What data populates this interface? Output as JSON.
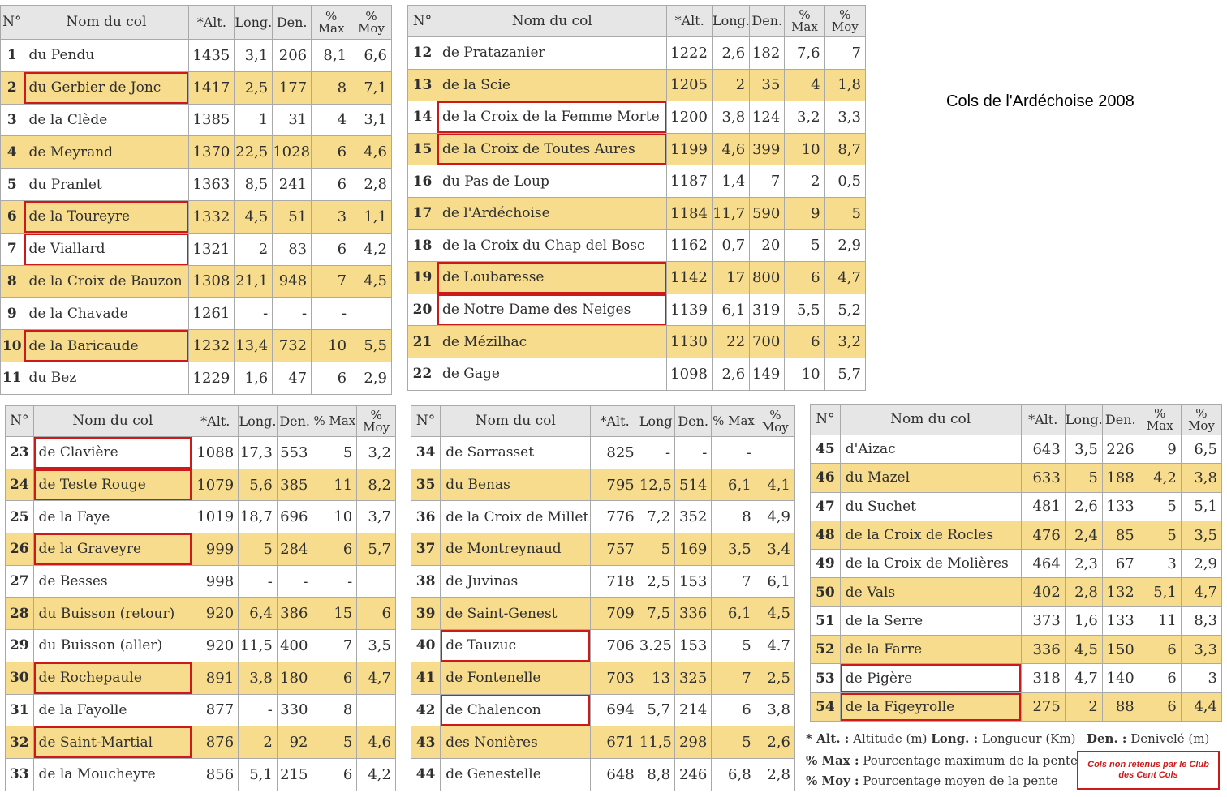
{
  "title": "Cols de l'Ardéchoise 2008",
  "headers": {
    "num": "N°",
    "name": "Nom du col",
    "alt": "*Alt.",
    "len": "Long.",
    "den": "Den.",
    "max": "% Max",
    "moy": "% Moy"
  },
  "tables": [
    {
      "rows": [
        {
          "n": "1",
          "name": "du Pendu",
          "alt": "1435",
          "len": "3,1",
          "den": "206",
          "max": "8,1",
          "moy": "6,6",
          "marked": false
        },
        {
          "n": "2",
          "name": "du Gerbier de Jonc",
          "alt": "1417",
          "len": "2,5",
          "den": "177",
          "max": "8",
          "moy": "7,1",
          "marked": true
        },
        {
          "n": "3",
          "name": "de la Clède",
          "alt": "1385",
          "len": "1",
          "den": "31",
          "max": "4",
          "moy": "3,1",
          "marked": false
        },
        {
          "n": "4",
          "name": "de Meyrand",
          "alt": "1370",
          "len": "22,5",
          "den": "1028",
          "max": "6",
          "moy": "4,6",
          "marked": false
        },
        {
          "n": "5",
          "name": "du Pranlet",
          "alt": "1363",
          "len": "8,5",
          "den": "241",
          "max": "6",
          "moy": "2,8",
          "marked": false
        },
        {
          "n": "6",
          "name": "de la Toureyre",
          "alt": "1332",
          "len": "4,5",
          "den": "51",
          "max": "3",
          "moy": "1,1",
          "marked": true
        },
        {
          "n": "7",
          "name": "de Viallard",
          "alt": "1321",
          "len": "2",
          "den": "83",
          "max": "6",
          "moy": "4,2",
          "marked": true
        },
        {
          "n": "8",
          "name": "de la Croix de Bauzon",
          "alt": "1308",
          "len": "21,1",
          "den": "948",
          "max": "7",
          "moy": "4,5",
          "marked": false
        },
        {
          "n": "9",
          "name": "de la Chavade",
          "alt": "1261",
          "len": "-",
          "den": "-",
          "max": "-",
          "moy": "",
          "marked": false
        },
        {
          "n": "10",
          "name": "de la Baricaude",
          "alt": "1232",
          "len": "13,4",
          "den": "732",
          "max": "10",
          "moy": "5,5",
          "marked": true
        },
        {
          "n": "11",
          "name": "du Bez",
          "alt": "1229",
          "len": "1,6",
          "den": "47",
          "max": "6",
          "moy": "2,9",
          "marked": false
        }
      ]
    },
    {
      "rows": [
        {
          "n": "12",
          "name": "de Pratazanier",
          "alt": "1222",
          "len": "2,6",
          "den": "182",
          "max": "7,6",
          "moy": "7",
          "marked": false
        },
        {
          "n": "13",
          "name": "de la Scie",
          "alt": "1205",
          "len": "2",
          "den": "35",
          "max": "4",
          "moy": "1,8",
          "marked": false
        },
        {
          "n": "14",
          "name": "de la Croix de la Femme Morte",
          "alt": "1200",
          "len": "3,8",
          "den": "124",
          "max": "3,2",
          "moy": "3,3",
          "marked": true
        },
        {
          "n": "15",
          "name": "de la Croix de Toutes Aures",
          "alt": "1199",
          "len": "4,6",
          "den": "399",
          "max": "10",
          "moy": "8,7",
          "marked": true
        },
        {
          "n": "16",
          "name": "du Pas de Loup",
          "alt": "1187",
          "len": "1,4",
          "den": "7",
          "max": "2",
          "moy": "0,5",
          "marked": false
        },
        {
          "n": "17",
          "name": "de l'Ardéchoise",
          "alt": "1184",
          "len": "11,7",
          "den": "590",
          "max": "9",
          "moy": "5",
          "marked": false
        },
        {
          "n": "18",
          "name": "de la Croix du Chap del Bosc",
          "alt": "1162",
          "len": "0,7",
          "den": "20",
          "max": "5",
          "moy": "2,9",
          "marked": false
        },
        {
          "n": "19",
          "name": "de Loubaresse",
          "alt": "1142",
          "len": "17",
          "den": "800",
          "max": "6",
          "moy": "4,7",
          "marked": true
        },
        {
          "n": "20",
          "name": "de Notre Dame des Neiges",
          "alt": "1139",
          "len": "6,1",
          "den": "319",
          "max": "5,5",
          "moy": "5,2",
          "marked": true
        },
        {
          "n": "21",
          "name": "de Mézilhac",
          "alt": "1130",
          "len": "22",
          "den": "700",
          "max": "6",
          "moy": "3,2",
          "marked": false
        },
        {
          "n": "22",
          "name": "de Gage",
          "alt": "1098",
          "len": "2,6",
          "den": "149",
          "max": "10",
          "moy": "5,7",
          "marked": false
        }
      ]
    },
    {
      "rows": [
        {
          "n": "23",
          "name": "de Clavière",
          "alt": "1088",
          "len": "17,3",
          "den": "553",
          "max": "5",
          "moy": "3,2",
          "marked": true
        },
        {
          "n": "24",
          "name": "de Teste Rouge",
          "alt": "1079",
          "len": "5,6",
          "den": "385",
          "max": "11",
          "moy": "8,2",
          "marked": true
        },
        {
          "n": "25",
          "name": "de la Faye",
          "alt": "1019",
          "len": "18,7",
          "den": "696",
          "max": "10",
          "moy": "3,7",
          "marked": false
        },
        {
          "n": "26",
          "name": "de la Graveyre",
          "alt": "999",
          "len": "5",
          "den": "284",
          "max": "6",
          "moy": "5,7",
          "marked": true
        },
        {
          "n": "27",
          "name": "de Besses",
          "alt": "998",
          "len": "-",
          "den": "-",
          "max": "-",
          "moy": "",
          "marked": false
        },
        {
          "n": "28",
          "name": "du Buisson (retour)",
          "alt": "920",
          "len": "6,4",
          "den": "386",
          "max": "15",
          "moy": "6",
          "marked": false
        },
        {
          "n": "29",
          "name": "du Buisson (aller)",
          "alt": "920",
          "len": "11,5",
          "den": "400",
          "max": "7",
          "moy": "3,5",
          "marked": false
        },
        {
          "n": "30",
          "name": "de Rochepaule",
          "alt": "891",
          "len": "3,8",
          "den": "180",
          "max": "6",
          "moy": "4,7",
          "marked": true
        },
        {
          "n": "31",
          "name": "de la Fayolle",
          "alt": "877",
          "len": "-",
          "den": "330",
          "max": "8",
          "moy": "",
          "marked": false
        },
        {
          "n": "32",
          "name": "de Saint-Martial",
          "alt": "876",
          "len": "2",
          "den": "92",
          "max": "5",
          "moy": "4,6",
          "marked": true
        },
        {
          "n": "33",
          "name": "de la Moucheyre",
          "alt": "856",
          "len": "5,1",
          "den": "215",
          "max": "6",
          "moy": "4,2",
          "marked": false
        }
      ]
    },
    {
      "rows": [
        {
          "n": "34",
          "name": "de Sarrasset",
          "alt": "825",
          "len": "-",
          "den": "-",
          "max": "-",
          "moy": "",
          "marked": false
        },
        {
          "n": "35",
          "name": "du Benas",
          "alt": "795",
          "len": "12,5",
          "den": "514",
          "max": "6,1",
          "moy": "4,1",
          "marked": false
        },
        {
          "n": "36",
          "name": "de la Croix de Millet",
          "alt": "776",
          "len": "7,2",
          "den": "352",
          "max": "8",
          "moy": "4,9",
          "marked": false
        },
        {
          "n": "37",
          "name": "de Montreynaud",
          "alt": "757",
          "len": "5",
          "den": "169",
          "max": "3,5",
          "moy": "3,4",
          "marked": false
        },
        {
          "n": "38",
          "name": "de Juvinas",
          "alt": "718",
          "len": "2,5",
          "den": "153",
          "max": "7",
          "moy": "6,1",
          "marked": false
        },
        {
          "n": "39",
          "name": "de Saint-Genest",
          "alt": "709",
          "len": "7,5",
          "den": "336",
          "max": "6,1",
          "moy": "4,5",
          "marked": false
        },
        {
          "n": "40",
          "name": "de Tauzuc",
          "alt": "706",
          "len": "3.25",
          "den": "153",
          "max": "5",
          "moy": "4.7",
          "marked": true
        },
        {
          "n": "41",
          "name": "de Fontenelle",
          "alt": "703",
          "len": "13",
          "den": "325",
          "max": "7",
          "moy": "2,5",
          "marked": false
        },
        {
          "n": "42",
          "name": "de Chalencon",
          "alt": "694",
          "len": "5,7",
          "den": "214",
          "max": "6",
          "moy": "3,8",
          "marked": true
        },
        {
          "n": "43",
          "name": "des Nonières",
          "alt": "671",
          "len": "11,5",
          "den": "298",
          "max": "5",
          "moy": "2,6",
          "marked": false
        },
        {
          "n": "44",
          "name": "de Genestelle",
          "alt": "648",
          "len": "8,8",
          "den": "246",
          "max": "6,8",
          "moy": "2,8",
          "marked": false
        }
      ]
    },
    {
      "rows": [
        {
          "n": "45",
          "name": "d'Aizac",
          "alt": "643",
          "len": "3,5",
          "den": "226",
          "max": "9",
          "moy": "6,5",
          "marked": false
        },
        {
          "n": "46",
          "name": "du Mazel",
          "alt": "633",
          "len": "5",
          "den": "188",
          "max": "4,2",
          "moy": "3,8",
          "marked": false
        },
        {
          "n": "47",
          "name": "du Suchet",
          "alt": "481",
          "len": "2,6",
          "den": "133",
          "max": "5",
          "moy": "5,1",
          "marked": false
        },
        {
          "n": "48",
          "name": "de la Croix de Rocles",
          "alt": "476",
          "len": "2,4",
          "den": "85",
          "max": "5",
          "moy": "3,5",
          "marked": false
        },
        {
          "n": "49",
          "name": "de la Croix de Molières",
          "alt": "464",
          "len": "2,3",
          "den": "67",
          "max": "3",
          "moy": "2,9",
          "marked": false
        },
        {
          "n": "50",
          "name": "de Vals",
          "alt": "402",
          "len": "2,8",
          "den": "132",
          "max": "5,1",
          "moy": "4,7",
          "marked": false
        },
        {
          "n": "51",
          "name": "de la Serre",
          "alt": "373",
          "len": "1,6",
          "den": "133",
          "max": "11",
          "moy": "8,3",
          "marked": false
        },
        {
          "n": "52",
          "name": "de la Farre",
          "alt": "336",
          "len": "4,5",
          "den": "150",
          "max": "6",
          "moy": "3,3",
          "marked": false
        },
        {
          "n": "53",
          "name": "de Pigère",
          "alt": "318",
          "len": "4,7",
          "den": "140",
          "max": "6",
          "moy": "3",
          "marked": true
        },
        {
          "n": "54",
          "name": "de la Figeyrolle",
          "alt": "275",
          "len": "2",
          "den": "88",
          "max": "6",
          "moy": "4,4",
          "marked": true
        }
      ]
    }
  ],
  "legend": {
    "alt_key": "* Alt. :",
    "alt_text": "Altitude (m)",
    "len_key": "Long. :",
    "len_text": "Longueur (Km)",
    "den_key": "Den. :",
    "den_text": "Denivelé (m)",
    "max_key": "% Max :",
    "max_text": "Pourcentage maximum de la pente",
    "moy_key": "% Moy :",
    "moy_text": "Pourcentage moyen de la pente",
    "box_text": "Cols non retenus par le Club des Cent Cols"
  },
  "colors": {
    "highlight_row": "#f6dc8c",
    "marker_red": "#cc1a1a",
    "header_bg": "#e6e6e6"
  }
}
